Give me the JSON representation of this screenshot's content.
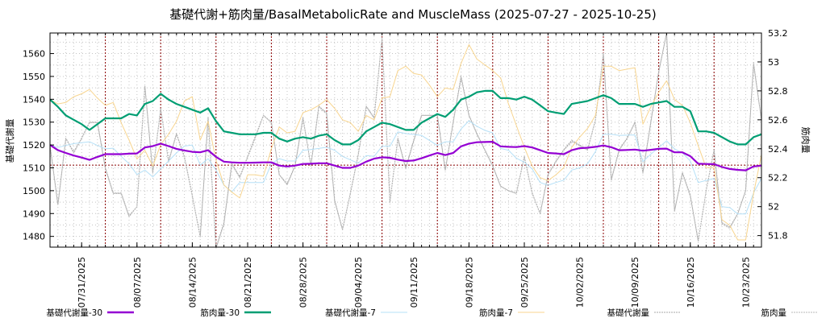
{
  "chart_data": {
    "type": "line",
    "title": "基礎代謝+筋肉量/BasalMetabolicRate and MuscleMass (2025-07-27 - 2025-10-25)",
    "x_start_date": "2025-07-27",
    "x_end_date": "2025-10-25",
    "xlabel": "",
    "x_tick_labels": [
      "07/31/2025",
      "08/07/2025",
      "08/14/2025",
      "08/21/2025",
      "08/28/2025",
      "09/04/2025",
      "09/11/2025",
      "09/18/2025",
      "09/25/2025",
      "10/02/2025",
      "10/09/2025",
      "10/16/2025",
      "10/23/2025"
    ],
    "x_tick_days": [
      4,
      11,
      18,
      25,
      32,
      39,
      46,
      53,
      60,
      67,
      74,
      81,
      88
    ],
    "week_marker_days": [
      7,
      14,
      21,
      28,
      35,
      42,
      49,
      56,
      63,
      70,
      77,
      84
    ],
    "reference_line_left": 1511.2,
    "left_axis": {
      "label": "基礎代謝量",
      "ylim": [
        1475.3,
        1569
      ],
      "ticks": [
        "1480",
        "1490",
        "1500",
        "1510",
        "1520",
        "1530",
        "1540",
        "1550",
        "1560"
      ]
    },
    "right_axis": {
      "label": "筋肉量",
      "ylim": [
        51.72,
        53.2
      ],
      "ticks": [
        "51.8",
        "52",
        "52.2",
        "52.4",
        "52.6",
        "52.8",
        "53",
        "53.2"
      ]
    },
    "grid": true,
    "legend_placement": "bottom",
    "series": [
      {
        "name": "基礎代謝量-30",
        "axis": "left",
        "color": "#9400d3",
        "width": 2.2,
        "dash": "",
        "values": [
          1520,
          1517.7,
          1516.5,
          1515.4,
          1514.5,
          1513.5,
          1514.8,
          1516,
          1516,
          1516,
          1516.2,
          1516.3,
          1518.9,
          1519.5,
          1520.6,
          1519.5,
          1518.3,
          1517.6,
          1517,
          1516.8,
          1517.7,
          1514.8,
          1512.7,
          1512.4,
          1512.2,
          1512.2,
          1512.3,
          1512.4,
          1512.4,
          1511,
          1510.6,
          1511,
          1511.7,
          1511.8,
          1512,
          1512,
          1511,
          1510,
          1510,
          1511,
          1512.7,
          1514,
          1514.6,
          1514.4,
          1513.6,
          1513,
          1513.2,
          1514.2,
          1515.4,
          1516.5,
          1515.6,
          1516.5,
          1519.4,
          1520.6,
          1521.2,
          1521.3,
          1521.4,
          1519.4,
          1519.2,
          1519.1,
          1519.5,
          1518.9,
          1517.7,
          1516.5,
          1516.3,
          1516,
          1517.7,
          1518.6,
          1518.8,
          1519.2,
          1519.8,
          1519,
          1517.7,
          1517.8,
          1518,
          1517.5,
          1517.9,
          1518.3,
          1518.4,
          1516.8,
          1516.8,
          1515.1,
          1511.8,
          1511.7,
          1511.6,
          1510.4,
          1509.5,
          1509.1,
          1508.9,
          1510.6,
          1511
        ]
      },
      {
        "name": "筋肉量-30",
        "axis": "right",
        "color": "#009e73",
        "width": 2.2,
        "dash": "",
        "values": [
          52.74,
          52.69,
          52.63,
          52.6,
          52.57,
          52.53,
          52.57,
          52.61,
          52.61,
          52.61,
          52.64,
          52.63,
          52.71,
          52.73,
          52.78,
          52.74,
          52.71,
          52.69,
          52.67,
          52.65,
          52.68,
          52.59,
          52.52,
          52.51,
          52.5,
          52.5,
          52.5,
          52.51,
          52.51,
          52.47,
          52.45,
          52.47,
          52.48,
          52.47,
          52.49,
          52.5,
          52.46,
          52.43,
          52.43,
          52.46,
          52.52,
          52.55,
          52.58,
          52.57,
          52.55,
          52.53,
          52.53,
          52.58,
          52.61,
          52.64,
          52.62,
          52.67,
          52.74,
          52.76,
          52.79,
          52.8,
          52.8,
          52.75,
          52.75,
          52.74,
          52.76,
          52.74,
          52.7,
          52.66,
          52.65,
          52.64,
          52.71,
          52.72,
          52.73,
          52.75,
          52.77,
          52.75,
          52.71,
          52.71,
          52.71,
          52.69,
          52.71,
          52.72,
          52.73,
          52.69,
          52.69,
          52.66,
          52.52,
          52.52,
          52.51,
          52.48,
          52.45,
          52.43,
          52.43,
          52.48,
          52.5
        ]
      },
      {
        "name": "基礎代謝量-7",
        "axis": "left",
        "color": "#b5e0f7",
        "width": 1,
        "dash": "",
        "values": [
          1520,
          1518.9,
          1519.8,
          1520.6,
          1521,
          1521.4,
          1519.8,
          1518.3,
          1518.6,
          1515,
          1511.8,
          1507.1,
          1509,
          1506,
          1509.5,
          1513,
          1516.5,
          1519.5,
          1520,
          1511.2,
          1514,
          1509,
          1502.4,
          1499.5,
          1503.6,
          1503.6,
          1503.6,
          1503.6,
          1511.8,
          1514,
          1513,
          1513,
          1517.7,
          1518,
          1518.5,
          1519,
          1517.7,
          1515,
          1513.5,
          1512,
          1515.4,
          1515,
          1519.4,
          1519.4,
          1525.7,
          1525,
          1524.6,
          1524.2,
          1522,
          1519.8,
          1521.4,
          1521.4,
          1527,
          1530.6,
          1528.2,
          1526.4,
          1525.3,
          1518.5,
          1517.7,
          1514.2,
          1512.5,
          1509.5,
          1503.6,
          1502.4,
          1503.6,
          1504.6,
          1509,
          1510,
          1511.8,
          1517.1,
          1524.7,
          1524.7,
          1524.2,
          1524.3,
          1524.4,
          1512.7,
          1516,
          1518.9,
          1521.8,
          1518.3,
          1516.5,
          1513,
          1503.6,
          1504.5,
          1505.4,
          1493,
          1492.6,
          1489.8,
          1489.8,
          1499,
          1505.4
        ]
      },
      {
        "name": "筋肉量-7",
        "axis": "right",
        "color": "#f8d58f",
        "width": 1,
        "dash": "",
        "values": [
          52.74,
          52.71,
          52.72,
          52.76,
          52.78,
          52.81,
          52.75,
          52.7,
          52.72,
          52.58,
          52.46,
          52.33,
          52.39,
          52.28,
          52.43,
          52.5,
          52.59,
          52.73,
          52.76,
          52.46,
          52.59,
          52.32,
          52.15,
          52.1,
          52.06,
          52.22,
          52.22,
          52.21,
          52.4,
          52.55,
          52.51,
          52.52,
          52.65,
          52.67,
          52.7,
          52.74,
          52.68,
          52.6,
          52.58,
          52.52,
          52.63,
          52.6,
          52.75,
          52.76,
          52.94,
          52.97,
          52.92,
          52.91,
          52.84,
          52.76,
          52.82,
          52.81,
          52.99,
          53.12,
          53.02,
          52.98,
          52.94,
          52.89,
          52.71,
          52.56,
          52.41,
          52.28,
          52.2,
          52.18,
          52.22,
          52.27,
          52.41,
          52.48,
          52.54,
          52.63,
          52.97,
          52.97,
          52.94,
          52.95,
          52.96,
          52.57,
          52.69,
          52.79,
          52.87,
          52.74,
          52.7,
          52.58,
          52.42,
          52.27,
          52.27,
          51.91,
          51.87,
          51.77,
          51.77,
          52.09,
          52.36
        ]
      },
      {
        "name": "基礎代謝量",
        "axis": "left",
        "color": "#a8a8a8",
        "width": 1,
        "dash": "2,1",
        "values": [
          1520,
          1494,
          1523,
          1517,
          1523,
          1530,
          1530,
          1510,
          1499,
          1499,
          1489,
          1493,
          1546,
          1508,
          1536,
          1513,
          1525,
          1515,
          1498,
          1480,
          1532,
          1475,
          1486,
          1512,
          1506,
          1515,
          1524,
          1533,
          1530,
          1507,
          1503,
          1511,
          1532,
          1511,
          1537,
          1534,
          1496,
          1483,
          1499,
          1516,
          1537,
          1532,
          1567,
          1495,
          1523,
          1510,
          1522,
          1533,
          1533,
          1533,
          1509,
          1530,
          1550,
          1533,
          1525,
          1518,
          1511,
          1502,
          1500,
          1499,
          1515,
          1499,
          1490,
          1507,
          1513,
          1518,
          1522,
          1520,
          1518,
          1531,
          1560,
          1505,
          1518,
          1523,
          1530,
          1508,
          1530,
          1552,
          1569,
          1491,
          1508,
          1498,
          1478,
          1500,
          1518,
          1486,
          1484,
          1490,
          1500,
          1556,
          1531
        ]
      },
      {
        "name": "筋肉量",
        "axis": "right",
        "color": "#b8b8b8",
        "width": 1,
        "dash": "2,1",
        "values": [
          52.42,
          52.01,
          52.47,
          52.37,
          52.47,
          52.58,
          52.58,
          52.26,
          52.09,
          52.09,
          51.93,
          52.0,
          52.83,
          52.23,
          52.67,
          52.31,
          52.5,
          52.34,
          52.07,
          51.79,
          52.61,
          51.71,
          51.88,
          52.29,
          52.2,
          52.34,
          52.48,
          52.63,
          52.58,
          52.22,
          52.15,
          52.28,
          52.61,
          52.28,
          52.69,
          52.64,
          52.04,
          51.84,
          52.09,
          52.36,
          52.69,
          52.61,
          53.16,
          52.03,
          52.47,
          52.26,
          52.45,
          52.63,
          52.63,
          52.63,
          52.25,
          52.58,
          52.89,
          52.63,
          52.5,
          52.39,
          52.28,
          52.14,
          52.11,
          52.09,
          52.34,
          52.09,
          51.95,
          52.22,
          52.31,
          52.39,
          52.45,
          52.42,
          52.39,
          52.6,
          53.06,
          52.18,
          52.39,
          52.47,
          52.58,
          52.23,
          52.58,
          52.93,
          53.2,
          51.97,
          52.23,
          52.07,
          51.76,
          52.11,
          52.39,
          51.88,
          51.85,
          51.95,
          52.11,
          52.98,
          52.6
        ]
      }
    ]
  }
}
